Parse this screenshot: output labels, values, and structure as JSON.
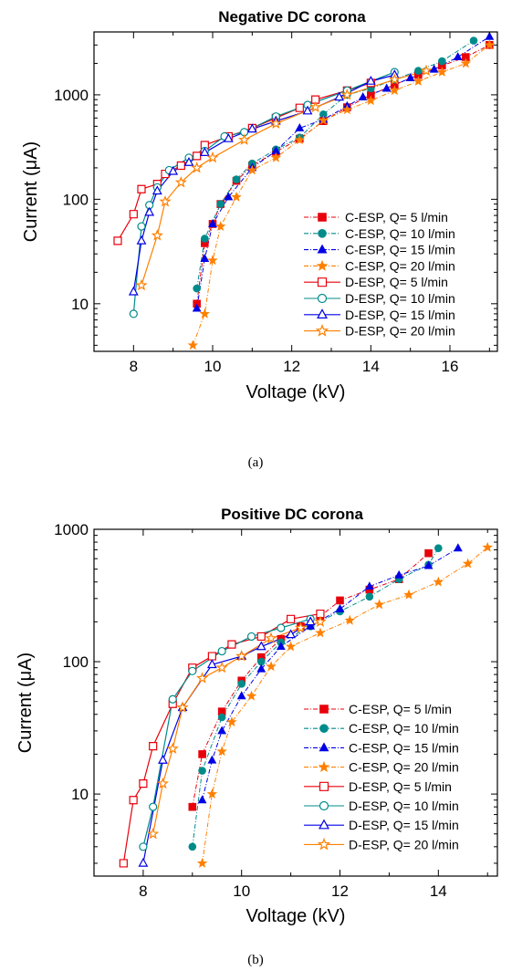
{
  "figure": {
    "captions": [
      "(a)",
      "(b)"
    ]
  },
  "chart_data": [
    {
      "type": "scatter",
      "title": "Negative DC corona",
      "xlabel": "Voltage (kV)",
      "ylabel": "Current (μA)",
      "xlim": [
        7,
        17.2
      ],
      "ylim": [
        3.5,
        4000
      ],
      "yscale": "log",
      "xticks": [
        8,
        10,
        12,
        14,
        16
      ],
      "xtick_labels": [
        "8",
        "10",
        "12",
        "14",
        "16"
      ],
      "yticks": [
        10,
        100,
        1000
      ],
      "ytick_labels": [
        "10",
        "100",
        "1000"
      ],
      "grid": false,
      "legend_position": "bottom-right",
      "series": [
        {
          "name": "C-ESP, Q=   5 l/min",
          "color": "#e8000b",
          "marker": "square",
          "filled": true,
          "line": "dashdot",
          "x": [
            9.6,
            9.8,
            10.0,
            10.2,
            10.6,
            11.0,
            11.6,
            12.2,
            12.8,
            13.4,
            14.0,
            14.6,
            15.2,
            15.8,
            16.4,
            17.0
          ],
          "y": [
            10,
            38,
            58,
            90,
            150,
            210,
            285,
            380,
            560,
            760,
            1000,
            1250,
            1550,
            1900,
            2300,
            3000
          ]
        },
        {
          "name": "C-ESP, Q= 10 l/min",
          "color": "#008b8b",
          "marker": "circle",
          "filled": true,
          "line": "dashdot",
          "x": [
            9.6,
            9.8,
            10.2,
            10.6,
            11.0,
            11.6,
            12.2,
            12.8,
            13.4,
            14.0,
            14.6,
            15.2,
            15.8,
            16.6
          ],
          "y": [
            14,
            42,
            90,
            155,
            220,
            300,
            390,
            650,
            1000,
            1150,
            1400,
            1700,
            2100,
            3300
          ]
        },
        {
          "name": "C-ESP, Q= 15 l/min",
          "color": "#0000e6",
          "marker": "triangle",
          "filled": true,
          "line": "dashdot",
          "x": [
            9.6,
            9.8,
            10.0,
            10.4,
            11.0,
            11.6,
            12.2,
            12.8,
            13.4,
            13.8,
            14.4,
            15.0,
            15.6,
            16.2,
            17.0
          ],
          "y": [
            9,
            27,
            58,
            105,
            200,
            290,
            480,
            580,
            780,
            950,
            1150,
            1450,
            1750,
            2300,
            3600
          ]
        },
        {
          "name": "C-ESP, Q= 20 l/min",
          "color": "#ff8000",
          "marker": "star",
          "filled": true,
          "line": "dashdot",
          "x": [
            9.5,
            9.8,
            10.0,
            10.2,
            10.6,
            11.0,
            11.6,
            12.2,
            12.8,
            13.4,
            14.0,
            14.6,
            15.2,
            15.8,
            16.4,
            17.0
          ],
          "y": [
            4,
            8,
            26,
            55,
            105,
            190,
            250,
            370,
            570,
            720,
            880,
            1100,
            1350,
            1650,
            2000,
            3000
          ]
        },
        {
          "name": "D-ESP, Q=   5 l/min",
          "color": "#e8000b",
          "marker": "square",
          "filled": false,
          "line": "solid",
          "x": [
            7.6,
            8.0,
            8.2,
            8.6,
            8.8,
            9.2,
            9.6,
            9.8,
            10.4,
            11.0,
            11.6,
            12.2,
            12.6,
            13.4,
            14.0
          ],
          "y": [
            40,
            72,
            125,
            140,
            175,
            210,
            260,
            330,
            400,
            480,
            600,
            750,
            900,
            1100,
            1300
          ]
        },
        {
          "name": "D-ESP, Q= 10 l/min",
          "color": "#008b8b",
          "marker": "circle",
          "filled": false,
          "line": "solid",
          "x": [
            8.0,
            8.2,
            8.4,
            8.6,
            8.9,
            9.4,
            9.8,
            10.3,
            10.8,
            11.6,
            12.4,
            13.4,
            14.6
          ],
          "y": [
            8,
            55,
            88,
            130,
            190,
            250,
            290,
            400,
            440,
            620,
            800,
            1100,
            1650
          ]
        },
        {
          "name": "D-ESP, Q= 15 l/min",
          "color": "#0000e6",
          "marker": "triangle",
          "filled": false,
          "line": "solid",
          "x": [
            8.0,
            8.2,
            8.4,
            8.6,
            9.0,
            9.4,
            9.8,
            10.4,
            11.0,
            11.6,
            12.4,
            13.2,
            14.0,
            14.6
          ],
          "y": [
            13,
            40,
            75,
            120,
            185,
            225,
            280,
            380,
            470,
            560,
            700,
            950,
            1350,
            1550
          ]
        },
        {
          "name": "D-ESP, Q= 20 l/min",
          "color": "#ff8000",
          "marker": "star",
          "filled": false,
          "line": "solid",
          "x": [
            8.2,
            8.6,
            8.8,
            9.2,
            9.6,
            10.0,
            10.8,
            11.6,
            12.6,
            13.4,
            14.6,
            15.4
          ],
          "y": [
            15,
            45,
            95,
            145,
            200,
            250,
            370,
            530,
            760,
            1000,
            1400,
            1700
          ]
        }
      ]
    },
    {
      "type": "scatter",
      "title": "Positive DC corona",
      "xlabel": "Voltage (kV)",
      "ylabel": "Current (μA)",
      "xlim": [
        7,
        15.2
      ],
      "ylim": [
        2.4,
        1000
      ],
      "yscale": "log",
      "xticks": [
        8,
        10,
        12,
        14
      ],
      "xtick_labels": [
        "8",
        "10",
        "12",
        "14"
      ],
      "yticks": [
        10,
        100,
        1000
      ],
      "ytick_labels": [
        "10",
        "100",
        "1000"
      ],
      "grid": false,
      "legend_position": "bottom-right",
      "series": [
        {
          "name": "C-ESP, Q=   5 l/min",
          "color": "#e8000b",
          "marker": "square",
          "filled": true,
          "line": "dashdot",
          "x": [
            9.0,
            9.2,
            9.6,
            10.0,
            10.4,
            10.8,
            11.2,
            11.6,
            12.0,
            12.6,
            13.2,
            13.8
          ],
          "y": [
            8,
            20,
            42,
            72,
            108,
            148,
            185,
            220,
            290,
            350,
            420,
            660
          ]
        },
        {
          "name": "C-ESP, Q= 10 l/min",
          "color": "#008b8b",
          "marker": "circle",
          "filled": true,
          "line": "dashdot",
          "x": [
            9.0,
            9.2,
            9.6,
            10.0,
            10.4,
            10.8,
            11.4,
            12.0,
            12.6,
            13.2,
            13.8,
            14.0
          ],
          "y": [
            4,
            15,
            38,
            68,
            100,
            140,
            185,
            240,
            310,
            420,
            540,
            720
          ]
        },
        {
          "name": "C-ESP, Q= 15 l/min",
          "color": "#0000e6",
          "marker": "triangle",
          "filled": true,
          "line": "dashdot",
          "x": [
            9.2,
            9.4,
            9.6,
            10.0,
            10.4,
            10.8,
            11.4,
            12.0,
            12.6,
            13.2,
            13.8,
            14.4
          ],
          "y": [
            9,
            18,
            30,
            55,
            88,
            130,
            185,
            250,
            370,
            450,
            530,
            720
          ]
        },
        {
          "name": "C-ESP, Q= 20 l/min",
          "color": "#ff8000",
          "marker": "star",
          "filled": true,
          "line": "dashdot",
          "x": [
            9.2,
            9.4,
            9.6,
            9.8,
            10.2,
            10.6,
            11.0,
            11.6,
            12.2,
            12.8,
            13.4,
            14.0,
            14.6,
            15.0
          ],
          "y": [
            3,
            10,
            21,
            35,
            55,
            92,
            130,
            165,
            205,
            270,
            320,
            400,
            550,
            730
          ]
        },
        {
          "name": "D-ESP, Q=   5 l/min",
          "color": "#e8000b",
          "marker": "square",
          "filled": false,
          "line": "solid",
          "x": [
            7.6,
            7.8,
            8.0,
            8.2,
            8.6,
            9.0,
            9.4,
            9.8,
            10.4,
            11.0,
            11.6
          ],
          "y": [
            3,
            9,
            12,
            23,
            48,
            90,
            110,
            135,
            155,
            210,
            230
          ]
        },
        {
          "name": "D-ESP, Q= 10 l/min",
          "color": "#008b8b",
          "marker": "circle",
          "filled": false,
          "line": "solid",
          "x": [
            8.0,
            8.2,
            8.6,
            9.0,
            9.6,
            10.2,
            10.8,
            11.4
          ],
          "y": [
            4,
            8,
            52,
            85,
            120,
            155,
            180,
            210
          ]
        },
        {
          "name": "D-ESP, Q= 15 l/min",
          "color": "#0000e6",
          "marker": "triangle",
          "filled": false,
          "line": "solid",
          "x": [
            8.0,
            8.4,
            8.8,
            9.4,
            10.0,
            10.4,
            11.0,
            11.4
          ],
          "y": [
            3,
            18,
            45,
            95,
            110,
            130,
            160,
            200
          ]
        },
        {
          "name": "D-ESP, Q= 20 l/min",
          "color": "#ff8000",
          "marker": "star",
          "filled": false,
          "line": "solid",
          "x": [
            8.2,
            8.4,
            8.6,
            8.8,
            9.2,
            9.6,
            10.0,
            10.6,
            11.2,
            11.6
          ],
          "y": [
            5,
            12,
            22,
            45,
            75,
            90,
            110,
            150,
            180,
            200
          ]
        }
      ]
    }
  ]
}
